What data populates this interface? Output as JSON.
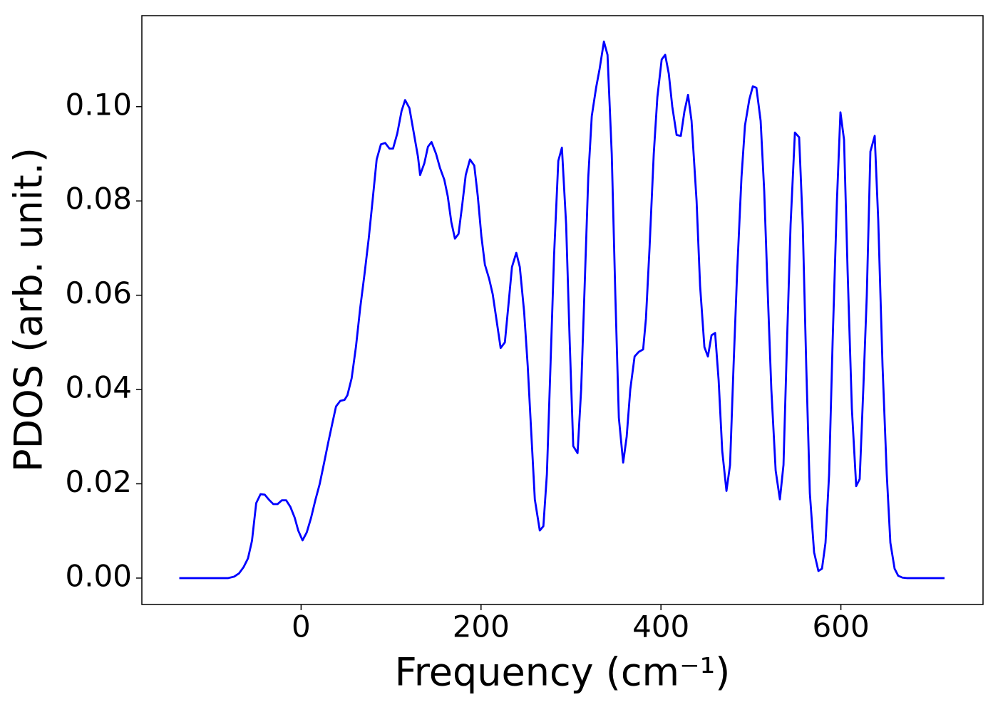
{
  "chart_data": {
    "type": "line",
    "xlabel": "Frequency (cm⁻¹)",
    "ylabel": "PDOS (arb. unit.)",
    "xlim": [
      -177,
      758
    ],
    "ylim": [
      -0.0056,
      0.1193
    ],
    "xticks": [
      0,
      200,
      400,
      600
    ],
    "yticks": [
      {
        "value": 0,
        "label": "0.00"
      },
      {
        "value": 0.02,
        "label": "0.02"
      },
      {
        "value": 0.04,
        "label": "0.04"
      },
      {
        "value": 0.06,
        "label": "0.06"
      },
      {
        "value": 0.08,
        "label": "0.08"
      },
      {
        "value": 0.1,
        "label": "0.10"
      }
    ],
    "grid": false,
    "series": [
      {
        "color": "#0000ff",
        "x": [
          -135.4,
          -81,
          -74.5,
          -69,
          -64,
          -59,
          -54.6,
          -49.9,
          -45.1,
          -40.4,
          -35.6,
          -30.9,
          -26.1,
          -21.4,
          -16.6,
          -11.9,
          -7.1,
          -3.2,
          1.6,
          6.3,
          11.1,
          15.8,
          20.6,
          25.3,
          30.1,
          34.8,
          38.8,
          43.6,
          48.3,
          51.5,
          56.2,
          61,
          65.7,
          70.5,
          75.2,
          79.2,
          84,
          88.7,
          93.5,
          98.2,
          102.2,
          106.9,
          111.7,
          115.6,
          120.4,
          125.1,
          129.9,
          132.3,
          137,
          141,
          145,
          150,
          154.4,
          159.2,
          163,
          167,
          171,
          175,
          179,
          183,
          187.7,
          192.5,
          196.4,
          200.4,
          204.3,
          209,
          213,
          217.8,
          221.8,
          226.5,
          230.5,
          234.4,
          239.2,
          243.1,
          247.9,
          251.9,
          255.8,
          259.8,
          265.3,
          269.3,
          273.2,
          277.2,
          281.2,
          285.9,
          289.9,
          294.6,
          298.6,
          302.5,
          307.3,
          311.3,
          315.2,
          319.2,
          323.1,
          327.9,
          331.8,
          336.6,
          340.6,
          345.3,
          349.3,
          353.2,
          358,
          361.9,
          365.9,
          370.7,
          375.4,
          380.2,
          383.3,
          387.3,
          392,
          396,
          400.8,
          404.7,
          408.7,
          412.6,
          417.4,
          422.1,
          426.1,
          430.1,
          434,
          439.6,
          443.5,
          448.3,
          452.2,
          456.2,
          460.2,
          464.1,
          468.1,
          472.8,
          476.8,
          480.7,
          484.7,
          489.5,
          493.4,
          498.2,
          502.1,
          506.1,
          510.8,
          514.8,
          518.8,
          522.7,
          527.5,
          532.2,
          536.2,
          540.1,
          544.1,
          548.9,
          553.6,
          557.6,
          561.5,
          565.5,
          570.2,
          575,
          579,
          582.9,
          586.9,
          590.8,
          595.6,
          599.5,
          603.5,
          607.5,
          612.2,
          617,
          620.9,
          624.9,
          628.8,
          632.8,
          637.6,
          641.5,
          646.3,
          651,
          655,
          659.7,
          663.7,
          668.4,
          673.2,
          715.2
        ],
        "values": [
          0,
          0,
          0.0003,
          0.001,
          0.0023,
          0.0042,
          0.0079,
          0.0159,
          0.0178,
          0.0177,
          0.0166,
          0.0157,
          0.0157,
          0.0165,
          0.0165,
          0.0151,
          0.0128,
          0.0101,
          0.008,
          0.0097,
          0.0128,
          0.0165,
          0.0199,
          0.0242,
          0.0287,
          0.0329,
          0.0364,
          0.0376,
          0.0378,
          0.0388,
          0.0424,
          0.0491,
          0.0573,
          0.0645,
          0.0721,
          0.0796,
          0.0888,
          0.092,
          0.0923,
          0.0911,
          0.0911,
          0.0943,
          0.0991,
          0.1014,
          0.0997,
          0.0946,
          0.0894,
          0.0855,
          0.088,
          0.0915,
          0.0925,
          0.09,
          0.087,
          0.0845,
          0.081,
          0.0755,
          0.072,
          0.073,
          0.079,
          0.0855,
          0.0888,
          0.0875,
          0.081,
          0.0725,
          0.0665,
          0.0635,
          0.0602,
          0.054,
          0.0488,
          0.05,
          0.058,
          0.066,
          0.069,
          0.066,
          0.0565,
          0.045,
          0.031,
          0.0167,
          0.0101,
          0.011,
          0.022,
          0.045,
          0.0685,
          0.0885,
          0.0913,
          0.075,
          0.05,
          0.028,
          0.0265,
          0.04,
          0.062,
          0.085,
          0.098,
          0.104,
          0.108,
          0.1138,
          0.111,
          0.09,
          0.06,
          0.034,
          0.0245,
          0.03,
          0.04,
          0.047,
          0.048,
          0.0485,
          0.055,
          0.07,
          0.09,
          0.102,
          0.11,
          0.111,
          0.107,
          0.1,
          0.094,
          0.0938,
          0.099,
          0.1025,
          0.097,
          0.08,
          0.062,
          0.049,
          0.047,
          0.0515,
          0.052,
          0.042,
          0.027,
          0.0185,
          0.024,
          0.045,
          0.065,
          0.085,
          0.096,
          0.1015,
          0.1043,
          0.104,
          0.097,
          0.082,
          0.06,
          0.04,
          0.0228,
          0.0167,
          0.024,
          0.05,
          0.075,
          0.0945,
          0.0935,
          0.075,
          0.045,
          0.018,
          0.0055,
          0.0015,
          0.002,
          0.0075,
          0.022,
          0.05,
          0.08,
          0.0988,
          0.093,
          0.065,
          0.036,
          0.0195,
          0.021,
          0.04,
          0.06,
          0.0905,
          0.0938,
          0.076,
          0.045,
          0.022,
          0.0075,
          0.002,
          0.0005,
          0.0001,
          0,
          0
        ]
      }
    ]
  }
}
